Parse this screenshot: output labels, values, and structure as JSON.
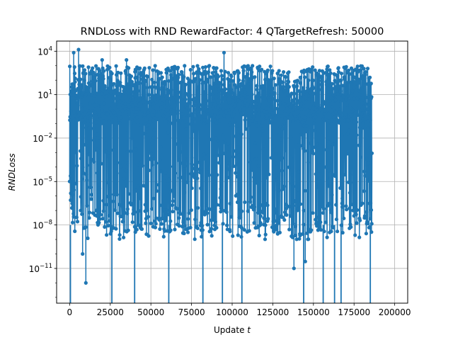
{
  "chart_data": {
    "type": "line",
    "title": "RNDLoss with RND RewardFactor: 4 QTargetRefresh: 50000",
    "xlabel_text": "Update ",
    "xlabel_var": "t",
    "ylabel": "RNDLoss",
    "x_scale": "linear",
    "y_scale": "log",
    "xlim": [
      -8000,
      208000
    ],
    "ylim_exp": [
      -13.4,
      4.7
    ],
    "grid": true,
    "line_color": "#1f77b4",
    "marker": "circle",
    "x_ticks": [
      {
        "value": 0,
        "label": "0"
      },
      {
        "value": 25000,
        "label": "25000"
      },
      {
        "value": 50000,
        "label": "50000"
      },
      {
        "value": 75000,
        "label": "75000"
      },
      {
        "value": 100000,
        "label": "100000"
      },
      {
        "value": 125000,
        "label": "125000"
      },
      {
        "value": 150000,
        "label": "150000"
      },
      {
        "value": 175000,
        "label": "175000"
      },
      {
        "value": 200000,
        "label": "200000"
      }
    ],
    "y_ticks": [
      {
        "exp": 4,
        "base": "10",
        "power": "4"
      },
      {
        "exp": 1,
        "base": "10",
        "power": "1"
      },
      {
        "exp": -2,
        "base": "10",
        "power": "−2"
      },
      {
        "exp": -5,
        "base": "10",
        "power": "−5"
      },
      {
        "exp": -8,
        "base": "10",
        "power": "−8"
      },
      {
        "exp": -11,
        "base": "10",
        "power": "−11"
      }
    ],
    "series": [
      {
        "x_range": [
          0,
          186000
        ],
        "n_points": 1800,
        "typical_log10_range": [
          -8.5,
          3.0
        ],
        "peaks": [
          {
            "x": 5500,
            "y": 13000
          },
          {
            "x": 2500,
            "y": 8000
          },
          {
            "x": 20000,
            "y": 2500
          },
          {
            "x": 35000,
            "y": 2500
          },
          {
            "x": 95000,
            "y": 8000
          },
          {
            "x": 160000,
            "y": 500
          },
          {
            "x": 175000,
            "y": 30
          }
        ],
        "dips": [
          {
            "x": 10000,
            "y": 1e-12
          },
          {
            "x": 8000,
            "y": 1e-10
          },
          {
            "x": 138000,
            "y": 1e-11
          },
          {
            "x": 145000,
            "y": 3e-11
          }
        ],
        "drops_to_axis_x": [
          500,
          26000,
          40000,
          61000,
          82000,
          94000,
          106000,
          144000,
          156000,
          163000,
          167000,
          185000
        ]
      }
    ]
  }
}
